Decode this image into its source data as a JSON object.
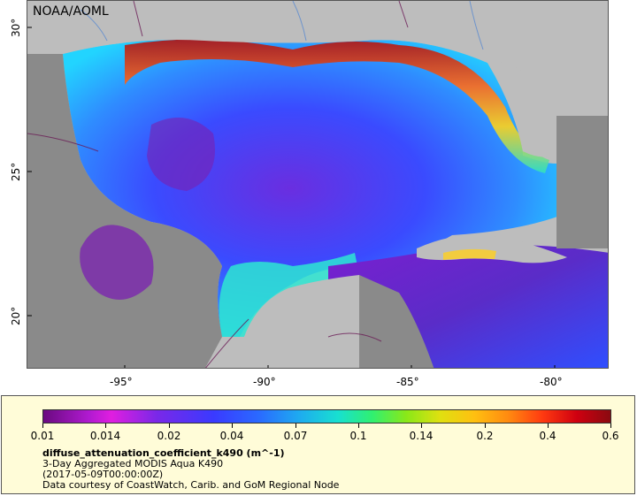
{
  "credit": "NOAA/AOML",
  "axes": {
    "x_ticks": [
      "-95°",
      "-90°",
      "-85°",
      "-80°"
    ],
    "y_ticks": [
      "30°",
      "25°",
      "20°"
    ]
  },
  "legend": {
    "tick_labels": [
      "0.01",
      "0.014",
      "0.02",
      "0.04",
      "0.07",
      "0.1",
      "0.14",
      "0.2",
      "0.4",
      "0.6"
    ],
    "variable": "diffuse_attenuation_coefficient_k490 (m^-1)",
    "product": "3-Day Aggregated MODIS Aqua K490",
    "date": "(2017-05-09T00:00:00Z)",
    "source": "Data courtesy of CoastWatch, Carib. and GoM Regional Node"
  },
  "colors": {
    "land": "#8a8a8a",
    "background": "#bdbdbd",
    "panel": "#fffcd8"
  }
}
